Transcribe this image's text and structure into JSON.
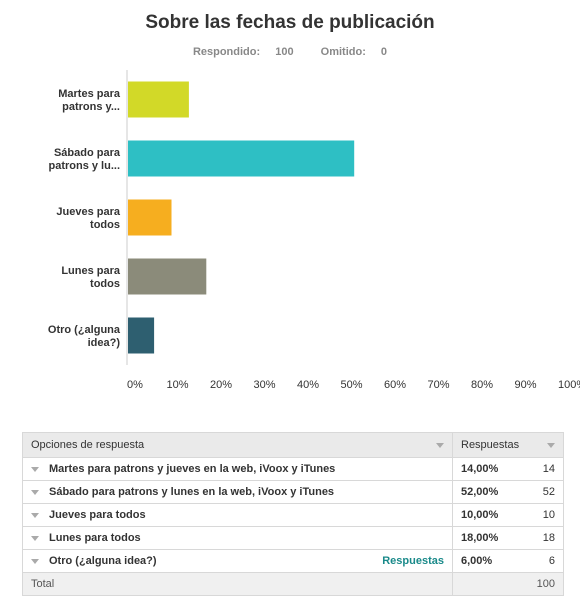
{
  "header": {
    "title": "Sobre las fechas de publicación",
    "answered_label": "Respondido:",
    "answered": 100,
    "skipped_label": "Omitido:",
    "skipped": 0
  },
  "chart_data": {
    "type": "bar",
    "orientation": "horizontal",
    "categories": [
      [
        "Martes para",
        "patrons y..."
      ],
      [
        "Sábado para",
        "patrons y lu..."
      ],
      [
        "Jueves para",
        "todos"
      ],
      [
        "Lunes para",
        "todos"
      ],
      [
        "Otro (¿alguna",
        "idea?)"
      ]
    ],
    "values": [
      14,
      52,
      10,
      18,
      6
    ],
    "colors": [
      "#d2d928",
      "#2ebfc4",
      "#f6ae1f",
      "#8b8b7a",
      "#2e5f70"
    ],
    "xlim": [
      0,
      100
    ],
    "xticks": [
      "0%",
      "10%",
      "20%",
      "30%",
      "40%",
      "50%",
      "60%",
      "70%",
      "80%",
      "90%",
      "100%"
    ],
    "grid": false
  },
  "table": {
    "header": {
      "options": "Opciones de respuesta",
      "responses": "Respuestas"
    },
    "rows": [
      {
        "option": "Martes para patrons y jueves en la web, iVoox y iTunes",
        "percent": "14,00%",
        "count": 14,
        "link": ""
      },
      {
        "option": "Sábado para patrons y lunes en la web, iVoox y iTunes",
        "percent": "52,00%",
        "count": 52,
        "link": ""
      },
      {
        "option": "Jueves para todos",
        "percent": "10,00%",
        "count": 10,
        "link": ""
      },
      {
        "option": "Lunes para todos",
        "percent": "18,00%",
        "count": 18,
        "link": ""
      },
      {
        "option": "Otro (¿alguna idea?)",
        "percent": "6,00%",
        "count": 6,
        "link": "Respuestas"
      }
    ],
    "total_label": "Total",
    "total": 100
  }
}
